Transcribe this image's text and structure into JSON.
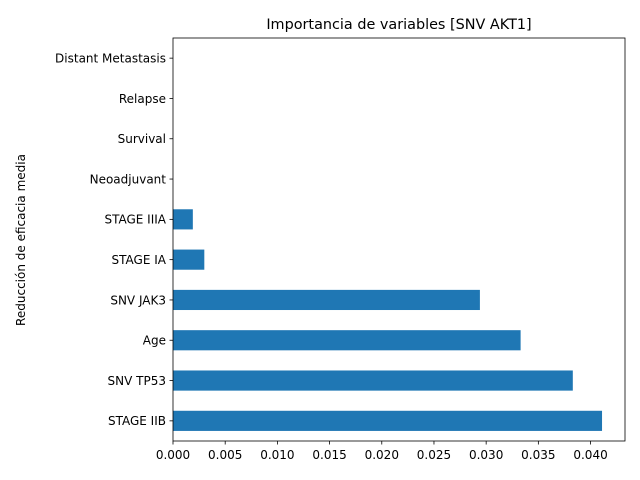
{
  "chart_data": {
    "type": "bar",
    "orientation": "horizontal",
    "title": "Importancia de variables [SNV AKT1]",
    "xlabel": "",
    "ylabel": "Reducción de eficacia media",
    "categories": [
      "STAGE IIB",
      "SNV TP53",
      "Age",
      "SNV JAK3",
      "STAGE IA",
      "STAGE IIIA",
      "Neoadjuvant",
      "Survival",
      "Relapse",
      "Distant Metastasis"
    ],
    "values": [
      0.0411,
      0.0383,
      0.0333,
      0.0294,
      0.003,
      0.0019,
      0.0,
      0.0,
      0.0,
      0.0
    ],
    "xlim": [
      0,
      0.0433
    ],
    "xticks": [
      "0.000",
      "0.005",
      "0.010",
      "0.015",
      "0.020",
      "0.025",
      "0.030",
      "0.035",
      "0.040"
    ],
    "grid": false,
    "legend": "none",
    "bar_color": "#1f77b4"
  }
}
